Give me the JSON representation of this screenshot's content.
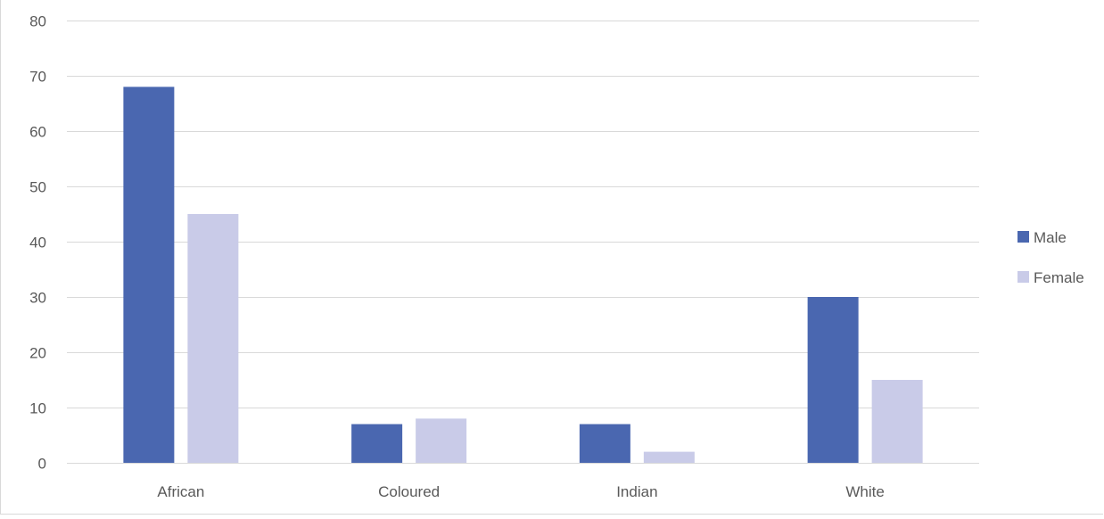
{
  "chart_data": {
    "type": "bar",
    "title": "",
    "xlabel": "",
    "ylabel": "",
    "categories": [
      "African",
      "Coloured",
      "Indian",
      "White"
    ],
    "series": [
      {
        "name": "Male",
        "values": [
          68,
          7,
          7,
          30
        ],
        "color": "#4a67b0"
      },
      {
        "name": "Female",
        "values": [
          45,
          8,
          2,
          15
        ],
        "color": "#c9cbe8"
      }
    ],
    "ylim": [
      0,
      80
    ],
    "yticks": [
      0,
      10,
      20,
      30,
      40,
      50,
      60,
      70,
      80
    ],
    "grid": true,
    "legend_position": "right",
    "gridline_color": "#d9d9d9",
    "text_color": "#595959"
  }
}
